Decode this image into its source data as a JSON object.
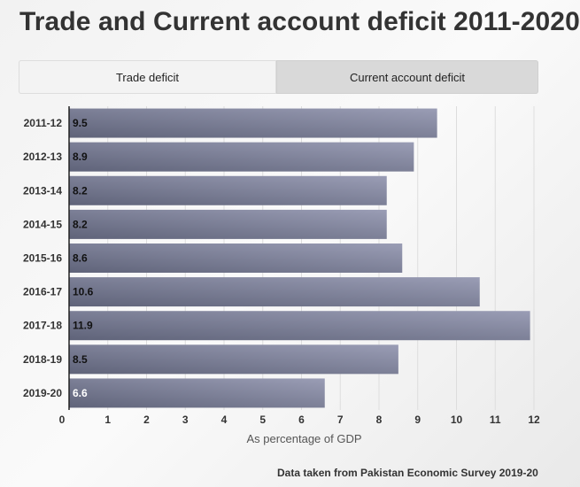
{
  "title": "Trade and Current account deficit 2011-2020",
  "tabs": [
    {
      "label": "Trade deficit",
      "active": true
    },
    {
      "label": "Current account deficit",
      "active": false
    }
  ],
  "source": "Data taken from Pakistan Economic Survey 2019-20",
  "colors": {
    "bar_dark": "#5f6379",
    "bar_light": "#9a9db5",
    "label_dark_bg": "#111111",
    "label_light_bg": "#ffffff",
    "grid": "#dddddd"
  },
  "chart_data": {
    "type": "bar",
    "orientation": "horizontal",
    "categories": [
      "2011-12",
      "2012-13",
      "2013-14",
      "2014-15",
      "2015-16",
      "2016-17",
      "2017-18",
      "2018-19",
      "2019-20"
    ],
    "values": [
      9.5,
      8.9,
      8.2,
      8.2,
      8.6,
      10.6,
      11.9,
      8.5,
      6.6
    ],
    "value_labels": [
      "9.5",
      "8.9",
      "8.2",
      "8.2",
      "8.6",
      "10.6",
      "11.9",
      "8.5",
      "6.6"
    ],
    "xticks": [
      "0",
      "1",
      "2",
      "3",
      "4",
      "5",
      "6",
      "7",
      "8",
      "9",
      "10",
      "11",
      "12"
    ],
    "xlabel": "As percentage of GDP",
    "ylabel": "",
    "xlim": [
      0,
      12
    ],
    "grid": true
  }
}
